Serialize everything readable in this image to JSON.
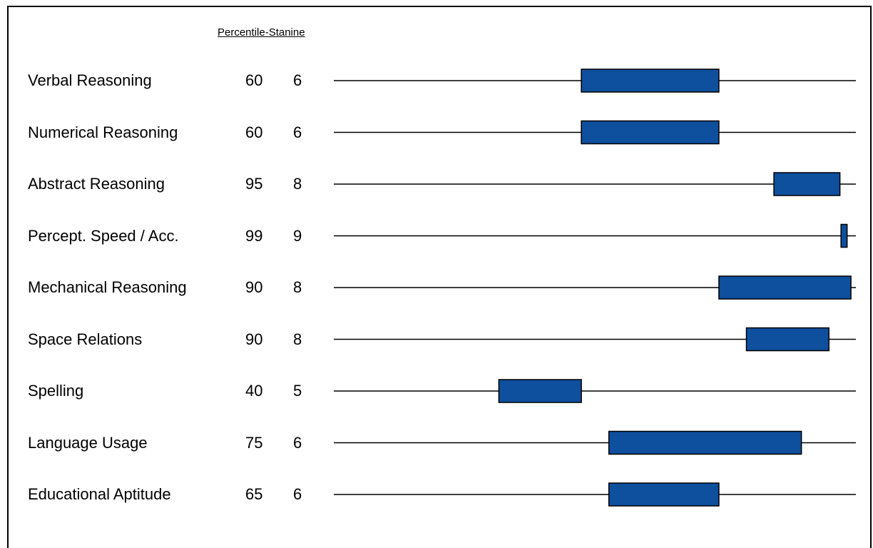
{
  "header": "Percentile-Stanine",
  "bar_color": "#0E4F9E",
  "chart_data": {
    "type": "bar",
    "title": "",
    "rows": [
      {
        "label": "Verbal Reasoning",
        "percentile": "60",
        "stanine": "6",
        "range": [
          45,
          70
        ]
      },
      {
        "label": "Numerical Reasoning",
        "percentile": "60",
        "stanine": "6",
        "range": [
          45,
          70
        ]
      },
      {
        "label": "Abstract Reasoning",
        "percentile": "95",
        "stanine": "8",
        "range": [
          80,
          92
        ]
      },
      {
        "label": "Percept. Speed / Acc.",
        "percentile": "99",
        "stanine": "9",
        "range": [
          92.2,
          93.3
        ]
      },
      {
        "label": "Mechanical Reasoning",
        "percentile": "90",
        "stanine": "8",
        "range": [
          70,
          94
        ]
      },
      {
        "label": "Space Relations",
        "percentile": "90",
        "stanine": "8",
        "range": [
          75,
          90
        ]
      },
      {
        "label": "Spelling",
        "percentile": "40",
        "stanine": "5",
        "range": [
          30,
          45
        ]
      },
      {
        "label": "Language Usage",
        "percentile": "75",
        "stanine": "6",
        "range": [
          50,
          85
        ]
      },
      {
        "label": "Educational Aptitude",
        "percentile": "65",
        "stanine": "6",
        "range": [
          50,
          70
        ]
      }
    ],
    "xlim": [
      0,
      94.9
    ]
  }
}
